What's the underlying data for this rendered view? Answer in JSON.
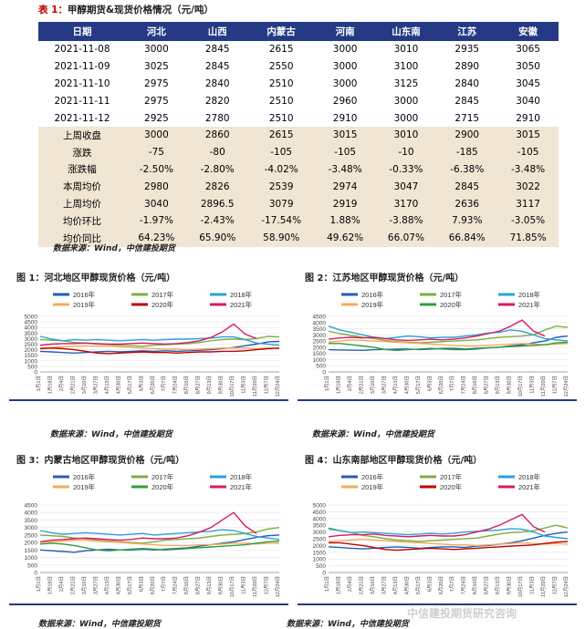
{
  "table": {
    "title_label": "表 1：",
    "title_text": "甲醇期货&现货价格情况（元/吨）",
    "headers": [
      "日期",
      "河北",
      "山西",
      "内蒙古",
      "河南",
      "山东南",
      "江苏",
      "安徽"
    ],
    "rows": [
      {
        "kind": "date",
        "cells": [
          "2021-11-08",
          "3000",
          "2845",
          "2615",
          "3000",
          "3010",
          "2935",
          "3065"
        ]
      },
      {
        "kind": "date",
        "cells": [
          "2021-11-09",
          "3025",
          "2845",
          "2550",
          "3000",
          "3100",
          "2890",
          "3050"
        ]
      },
      {
        "kind": "date",
        "cells": [
          "2021-11-10",
          "2975",
          "2840",
          "2510",
          "3000",
          "3125",
          "2840",
          "3045"
        ]
      },
      {
        "kind": "date",
        "cells": [
          "2021-11-11",
          "2975",
          "2820",
          "2510",
          "2960",
          "3000",
          "2845",
          "3040"
        ]
      },
      {
        "kind": "date",
        "cells": [
          "2021-11-12",
          "2925",
          "2780",
          "2510",
          "2910",
          "3000",
          "2715",
          "2910"
        ]
      },
      {
        "kind": "stat",
        "cells": [
          "上周收盘",
          "3000",
          "2860",
          "2615",
          "3015",
          "3010",
          "2900",
          "3015"
        ]
      },
      {
        "kind": "stat",
        "cells": [
          "涨跌",
          "-75",
          "-80",
          "-105",
          "-105",
          "-10",
          "-185",
          "-105"
        ]
      },
      {
        "kind": "stat",
        "cells": [
          "涨跌幅",
          "-2.50%",
          "-2.80%",
          "-4.02%",
          "-3.48%",
          "-0.33%",
          "-6.38%",
          "-3.48%"
        ]
      },
      {
        "kind": "stat",
        "cells": [
          "本周均价",
          "2980",
          "2826",
          "2539",
          "2974",
          "3047",
          "2845",
          "3022"
        ]
      },
      {
        "kind": "stat",
        "cells": [
          "上周均价",
          "3040",
          "2896.5",
          "3079",
          "2919",
          "3170",
          "2636",
          "3117"
        ]
      },
      {
        "kind": "stat",
        "cells": [
          "均价环比",
          "-1.97%",
          "-2.43%",
          "-17.54%",
          "1.88%",
          "-3.88%",
          "7.93%",
          "-3.05%"
        ]
      },
      {
        "kind": "stat",
        "cells": [
          "均价同比",
          "64.23%",
          "65.90%",
          "58.90%",
          "49.62%",
          "66.07%",
          "66.84%",
          "71.85%"
        ]
      }
    ],
    "source": "数据来源：Wind，中信建投期货"
  },
  "figures": [
    {
      "label": "图 1：",
      "title": "河北地区甲醇现货价格（元/吨）",
      "source": "数据来源：Wind，中信建投期货"
    },
    {
      "label": "图 2：",
      "title": "江苏地区甲醇现货价格（元/吨）",
      "source": "数据来源：Wind，中信建投期货"
    },
    {
      "label": "图 3：",
      "title": "内蒙古地区甲醇现货价格（元/吨）",
      "source": "数据来源：Wind，中信建投期货"
    },
    {
      "label": "图 4：",
      "title": "山东南部地区甲醇现货价格（元/吨）",
      "source": "数据来源：Wind，中信建投期货"
    }
  ],
  "chart_data": [
    {
      "type": "line",
      "title": "",
      "ylim": [
        0,
        5000
      ],
      "yticks": [
        "0",
        "500",
        "1000",
        "1500",
        "2000",
        "2500",
        "3000",
        "3500",
        "4000",
        "4500",
        "5000"
      ],
      "xticks": [
        "1月1日",
        "1月18日",
        "2月4日",
        "2月21日",
        "3月10日",
        "3月27日",
        "4月13日",
        "4月30日",
        "5月17日",
        "6月3日",
        "6月20日",
        "7月7日",
        "7月24日",
        "8月10日",
        "8月27日",
        "9月13日",
        "9月30日",
        "10月17日",
        "11月3日",
        "11月20日",
        "12月7日",
        "12月24日"
      ],
      "legend_position": "top",
      "series": [
        {
          "name": "2016年",
          "color": "#1f5fb4",
          "values": [
            1850,
            1800,
            1750,
            1700,
            1750,
            1800,
            1850,
            1800,
            1850,
            1900,
            1850,
            1900,
            1850,
            1900,
            1950,
            2000,
            2100,
            2200,
            2350,
            2500,
            2700,
            2750
          ]
        },
        {
          "name": "2017年",
          "color": "#7fae3e",
          "values": [
            2900,
            2850,
            2800,
            2650,
            2600,
            2500,
            2450,
            2400,
            2350,
            2300,
            2400,
            2450,
            2500,
            2550,
            2650,
            2800,
            2900,
            2950,
            2900,
            3000,
            3200,
            3150
          ]
        },
        {
          "name": "2018年",
          "color": "#2ca0d8",
          "values": [
            3200,
            2950,
            2800,
            2900,
            2850,
            2900,
            2850,
            2800,
            2850,
            2900,
            2850,
            2900,
            2950,
            2950,
            3000,
            3050,
            3150,
            3150,
            2900,
            2600,
            2500,
            2400
          ]
        },
        {
          "name": "2019年",
          "color": "#f5a95b",
          "values": [
            2150,
            2200,
            2250,
            2300,
            2350,
            2300,
            2300,
            2250,
            2200,
            2150,
            2100,
            2050,
            2050,
            2000,
            2050,
            2100,
            2150,
            2150,
            2150,
            2100,
            2150,
            2100
          ]
        },
        {
          "name": "2020年",
          "color": "#c00000",
          "values": [
            2100,
            2150,
            2100,
            2000,
            1850,
            1700,
            1650,
            1700,
            1750,
            1800,
            1750,
            1750,
            1700,
            1750,
            1800,
            1800,
            1850,
            1850,
            1900,
            2000,
            2100,
            2150
          ]
        },
        {
          "name": "2021年",
          "color": "#d81b60",
          "values": [
            2400,
            2500,
            2550,
            2550,
            2600,
            2550,
            2500,
            2500,
            2550,
            2600,
            2550,
            2500,
            2550,
            2650,
            2800,
            3100,
            3600,
            4300,
            3400,
            3000,
            null,
            null
          ]
        }
      ]
    },
    {
      "type": "line",
      "title": "",
      "ylim": [
        0,
        4500
      ],
      "yticks": [
        "0",
        "500",
        "1000",
        "1500",
        "2000",
        "2500",
        "3000",
        "3500",
        "4000",
        "4500"
      ],
      "xticks": [
        "1月1日",
        "1月18日",
        "2月4日",
        "2月21日",
        "3月10日",
        "3月27日",
        "4月13日",
        "4月30日",
        "5月17日",
        "6月3日",
        "6月20日",
        "7月7日",
        "7月24日",
        "8月10日",
        "8月27日",
        "9月13日",
        "9月30日",
        "10月17日",
        "11月3日",
        "11月20日",
        "12月7日",
        "12月24日"
      ],
      "legend_position": "top",
      "series": [
        {
          "name": "2016年",
          "color": "#1f5fb4",
          "values": [
            1800,
            1780,
            1760,
            1750,
            1800,
            1820,
            1850,
            1850,
            1800,
            1850,
            1900,
            1900,
            1850,
            1900,
            1950,
            2000,
            2100,
            2200,
            2350,
            2500,
            2800,
            2900
          ]
        },
        {
          "name": "2017年",
          "color": "#7fae3e",
          "values": [
            3300,
            3100,
            2950,
            2800,
            2700,
            2550,
            2450,
            2400,
            2350,
            2400,
            2450,
            2500,
            2550,
            2600,
            2700,
            2800,
            2850,
            2900,
            3000,
            3400,
            3700,
            3600
          ]
        },
        {
          "name": "2018年",
          "color": "#2ca0d8",
          "values": [
            3700,
            3400,
            3200,
            3000,
            2800,
            2700,
            2800,
            2900,
            2850,
            2750,
            2800,
            2800,
            2900,
            3000,
            3150,
            3200,
            3400,
            3300,
            3000,
            2700,
            2600,
            2500
          ]
        },
        {
          "name": "2019年",
          "color": "#f5a95b",
          "values": [
            2400,
            2500,
            2600,
            2550,
            2500,
            2450,
            2400,
            2350,
            2300,
            2250,
            2200,
            2150,
            2100,
            2100,
            2150,
            2200,
            2250,
            2300,
            2250,
            2200,
            2250,
            2300
          ]
        },
        {
          "name": "2020年",
          "color": "#2e9e3a",
          "values": [
            2300,
            2300,
            2200,
            2100,
            2000,
            1800,
            1750,
            1800,
            1850,
            1900,
            1850,
            1800,
            1800,
            1850,
            1950,
            2000,
            2050,
            2100,
            2150,
            2200,
            2350,
            2400
          ]
        },
        {
          "name": "2021年",
          "color": "#d81b60",
          "values": [
            2650,
            2750,
            2800,
            2750,
            2800,
            2700,
            2600,
            2550,
            2600,
            2650,
            2600,
            2650,
            2750,
            2900,
            3100,
            3300,
            3700,
            4200,
            3300,
            2900,
            null,
            null
          ]
        }
      ]
    },
    {
      "type": "line",
      "title": "",
      "ylim": [
        0,
        4500
      ],
      "yticks": [
        "0",
        "500",
        "1000",
        "1500",
        "2000",
        "2500",
        "3000",
        "3500",
        "4000",
        "4500"
      ],
      "xticks": [
        "1月1日",
        "1月18日",
        "2月4日",
        "2月21日",
        "3月10日",
        "3月27日",
        "4月13日",
        "4月30日",
        "5月17日",
        "6月3日",
        "6月20日",
        "7月7日",
        "7月24日",
        "8月10日",
        "8月27日",
        "9月13日",
        "9月30日",
        "10月17日",
        "11月3日",
        "11月20日",
        "12月7日",
        "12月24日"
      ],
      "legend_position": "top",
      "series": [
        {
          "name": "2016年",
          "color": "#1f5fb4",
          "values": [
            1500,
            1450,
            1400,
            1350,
            1450,
            1500,
            1550,
            1500,
            1500,
            1550,
            1500,
            1550,
            1600,
            1650,
            1750,
            1850,
            1950,
            2050,
            2200,
            2350,
            2450,
            2500
          ]
        },
        {
          "name": "2017年",
          "color": "#7fae3e",
          "values": [
            2500,
            2450,
            2400,
            2300,
            2250,
            2150,
            2100,
            2050,
            2000,
            1950,
            2050,
            2150,
            2200,
            2250,
            2300,
            2400,
            2500,
            2550,
            2600,
            2700,
            2900,
            3000
          ]
        },
        {
          "name": "2018年",
          "color": "#2ca0d8",
          "values": [
            2800,
            2650,
            2550,
            2600,
            2650,
            2600,
            2550,
            2500,
            2550,
            2600,
            2500,
            2550,
            2600,
            2650,
            2700,
            2750,
            2850,
            2800,
            2600,
            2400,
            2300,
            2200
          ]
        },
        {
          "name": "2019年",
          "color": "#f5a95b",
          "values": [
            2000,
            2050,
            2100,
            2150,
            2150,
            2100,
            2050,
            2000,
            1950,
            1900,
            1850,
            1800,
            1800,
            1800,
            1850,
            1850,
            1900,
            1950,
            1950,
            1900,
            1950,
            1950
          ]
        },
        {
          "name": "2020年",
          "color": "#2e9e3a",
          "values": [
            1900,
            1950,
            1900,
            1800,
            1650,
            1500,
            1450,
            1500,
            1550,
            1600,
            1550,
            1500,
            1550,
            1600,
            1650,
            1700,
            1750,
            1800,
            1850,
            1950,
            2050,
            2100
          ]
        },
        {
          "name": "2021年",
          "color": "#d81b60",
          "values": [
            2050,
            2150,
            2200,
            2250,
            2300,
            2250,
            2200,
            2150,
            2200,
            2300,
            2250,
            2250,
            2300,
            2450,
            2700,
            3000,
            3500,
            4000,
            3100,
            2600,
            null,
            null
          ]
        }
      ]
    },
    {
      "type": "line",
      "title": "",
      "ylim": [
        0,
        5000
      ],
      "yticks": [
        "0",
        "500",
        "1000",
        "1500",
        "2000",
        "2500",
        "3000",
        "3500",
        "4000",
        "4500",
        "5000"
      ],
      "xticks": [
        "1月1日",
        "1月18日",
        "2月4日",
        "2月21日",
        "3月10日",
        "3月27日",
        "4月13日",
        "4月30日",
        "5月17日",
        "6月3日",
        "6月20日",
        "7月7日",
        "7月24日",
        "8月10日",
        "8月27日",
        "9月13日",
        "9月30日",
        "10月17日",
        "11月3日",
        "11月20日",
        "12月7日",
        "12月24日"
      ],
      "legend_position": "top",
      "series": [
        {
          "name": "2016年",
          "color": "#1f5fb4",
          "values": [
            1900,
            1850,
            1800,
            1750,
            1800,
            1850,
            1900,
            1850,
            1800,
            1850,
            1900,
            1900,
            1850,
            1950,
            2000,
            2100,
            2200,
            2350,
            2550,
            2750,
            2900,
            3000
          ]
        },
        {
          "name": "2017年",
          "color": "#7fae3e",
          "values": [
            3200,
            3100,
            2950,
            2750,
            2650,
            2500,
            2400,
            2350,
            2300,
            2350,
            2400,
            2450,
            2500,
            2550,
            2700,
            2850,
            2950,
            3000,
            3100,
            3300,
            3500,
            3300
          ]
        },
        {
          "name": "2018年",
          "color": "#2ca0d8",
          "values": [
            3300,
            3100,
            2950,
            3000,
            2950,
            2900,
            2850,
            2800,
            2850,
            2900,
            2850,
            2900,
            3000,
            3050,
            3100,
            3150,
            3250,
            3200,
            3000,
            2700,
            2600,
            2500
          ]
        },
        {
          "name": "2019年",
          "color": "#f5a95b",
          "values": [
            2300,
            2350,
            2400,
            2450,
            2400,
            2350,
            2300,
            2250,
            2200,
            2150,
            2100,
            2050,
            2050,
            2000,
            2050,
            2100,
            2150,
            2200,
            2150,
            2100,
            2150,
            2100
          ]
        },
        {
          "name": "2020年",
          "color": "#c00000",
          "values": [
            2200,
            2200,
            2100,
            2000,
            1850,
            1700,
            1650,
            1700,
            1750,
            1800,
            1750,
            1700,
            1750,
            1800,
            1850,
            1900,
            1950,
            2000,
            2050,
            2150,
            2250,
            2300
          ]
        },
        {
          "name": "2021年",
          "color": "#d81b60",
          "values": [
            2650,
            2750,
            2800,
            2800,
            2850,
            2750,
            2700,
            2650,
            2700,
            2750,
            2700,
            2700,
            2800,
            3000,
            3200,
            3500,
            3900,
            4300,
            3400,
            3000,
            null,
            null
          ]
        }
      ]
    }
  ],
  "watermark": "中信建投期货研究咨询"
}
